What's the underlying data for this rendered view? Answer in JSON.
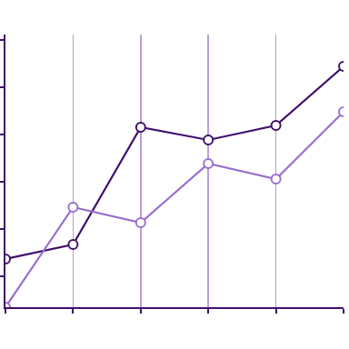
{
  "chart_data": {
    "type": "line",
    "x": [
      0,
      1,
      2,
      3,
      4,
      5
    ],
    "series": [
      {
        "color": "#3f0f6b",
        "values": [
          53,
          69,
          198,
          184,
          200,
          265
        ]
      },
      {
        "color": "#9a6fcf",
        "values": [
          0,
          110,
          93,
          158,
          141,
          215
        ]
      }
    ],
    "xlim": [
      0,
      5
    ],
    "xticks": [
      0,
      1,
      2,
      3,
      4,
      5
    ],
    "ylim": [
      0,
      300
    ],
    "yticks": [
      34,
      86,
      138,
      190,
      242,
      294
    ],
    "grid": "x",
    "tick_labels": false,
    "marker": "open_circle"
  }
}
